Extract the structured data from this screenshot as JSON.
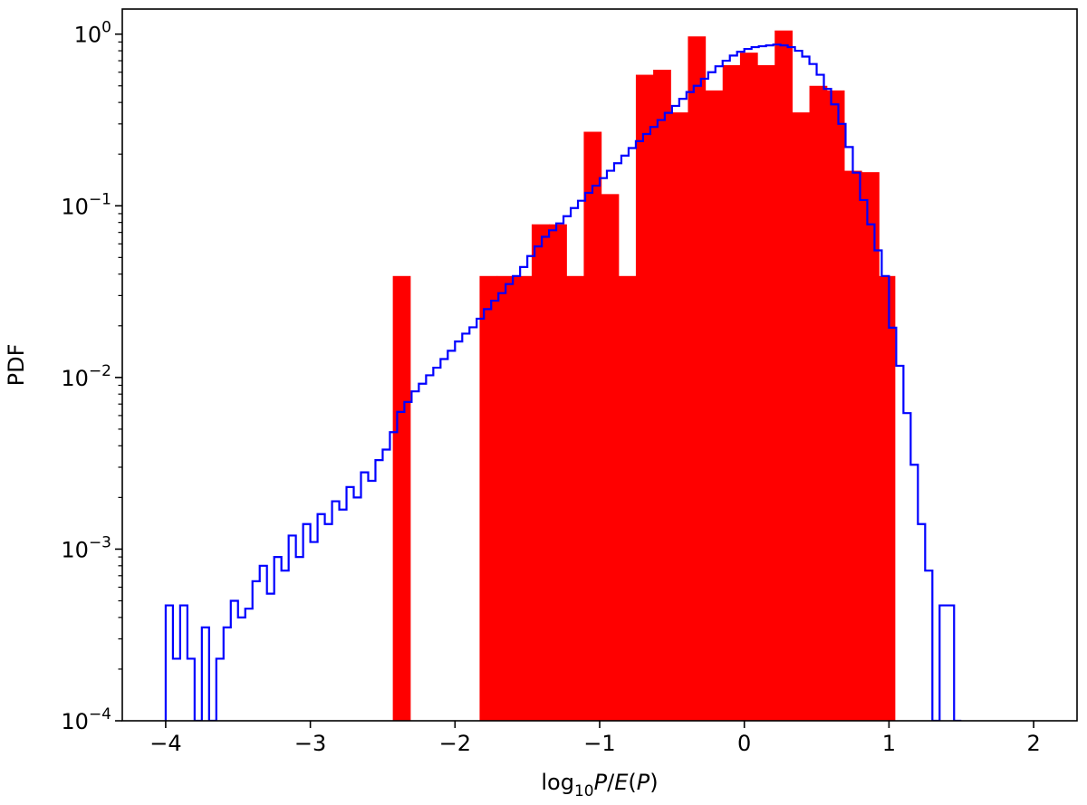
{
  "chart_data": {
    "type": "bar",
    "title": "",
    "xlabel_parts": [
      "log",
      "10",
      "P",
      "/",
      "E",
      "(",
      "P",
      ")"
    ],
    "ylabel": "PDF",
    "xlim": [
      -4.3,
      2.3
    ],
    "ylim": [
      0.0001,
      1.4
    ],
    "yscale": "log",
    "grid": false,
    "legend": "none",
    "x_ticks": [
      {
        "value": -4,
        "label": "−4"
      },
      {
        "value": -3,
        "label": "−3"
      },
      {
        "value": -2,
        "label": "−2"
      },
      {
        "value": -1,
        "label": "−1"
      },
      {
        "value": 0,
        "label": "0"
      },
      {
        "value": 1,
        "label": "1"
      },
      {
        "value": 2,
        "label": "2"
      }
    ],
    "y_ticks": [
      {
        "value": 1,
        "base": "10",
        "exp": "0"
      },
      {
        "value": 0.1,
        "base": "10",
        "exp": "−1"
      },
      {
        "value": 0.01,
        "base": "10",
        "exp": "−2"
      },
      {
        "value": 0.001,
        "base": "10",
        "exp": "−3"
      },
      {
        "value": 0.0001,
        "base": "10",
        "exp": "−4"
      }
    ],
    "series": [
      {
        "kind": "bars",
        "color": "#ff0000",
        "bins": [
          {
            "x0": -2.43,
            "x1": -2.31,
            "value": 0.039
          },
          {
            "x0": -1.83,
            "x1": -1.71,
            "value": 0.039
          },
          {
            "x0": -1.71,
            "x1": -1.59,
            "value": 0.039
          },
          {
            "x0": -1.59,
            "x1": -1.47,
            "value": 0.039
          },
          {
            "x0": -1.47,
            "x1": -1.35,
            "value": 0.078
          },
          {
            "x0": -1.35,
            "x1": -1.23,
            "value": 0.078
          },
          {
            "x0": -1.23,
            "x1": -1.11,
            "value": 0.039
          },
          {
            "x0": -1.11,
            "x1": -0.99,
            "value": 0.27
          },
          {
            "x0": -0.99,
            "x1": -0.87,
            "value": 0.117
          },
          {
            "x0": -0.87,
            "x1": -0.75,
            "value": 0.039
          },
          {
            "x0": -0.75,
            "x1": -0.63,
            "value": 0.58
          },
          {
            "x0": -0.63,
            "x1": -0.51,
            "value": 0.62
          },
          {
            "x0": -0.51,
            "x1": -0.39,
            "value": 0.35
          },
          {
            "x0": -0.39,
            "x1": -0.27,
            "value": 0.97
          },
          {
            "x0": -0.27,
            "x1": -0.15,
            "value": 0.47
          },
          {
            "x0": -0.15,
            "x1": -0.03,
            "value": 0.66
          },
          {
            "x0": -0.03,
            "x1": 0.09,
            "value": 0.78
          },
          {
            "x0": 0.09,
            "x1": 0.21,
            "value": 0.66
          },
          {
            "x0": 0.21,
            "x1": 0.33,
            "value": 1.05
          },
          {
            "x0": 0.33,
            "x1": 0.45,
            "value": 0.35
          },
          {
            "x0": 0.45,
            "x1": 0.57,
            "value": 0.5
          },
          {
            "x0": 0.57,
            "x1": 0.69,
            "value": 0.47
          },
          {
            "x0": 0.69,
            "x1": 0.81,
            "value": 0.16
          },
          {
            "x0": 0.81,
            "x1": 0.93,
            "value": 0.157
          },
          {
            "x0": 0.93,
            "x1": 1.04,
            "value": 0.039
          }
        ]
      },
      {
        "kind": "step",
        "color": "#0000ff",
        "points": [
          [
            -4.0,
            0.00047
          ],
          [
            -3.95,
            0.00023
          ],
          [
            -3.9,
            0.00047
          ],
          [
            -3.85,
            0.00023
          ],
          [
            -3.8,
            0.0001
          ],
          [
            -3.75,
            0.00035
          ],
          [
            -3.7,
            0.0001
          ],
          [
            -3.65,
            0.00023
          ],
          [
            -3.6,
            0.00035
          ],
          [
            -3.55,
            0.0005
          ],
          [
            -3.5,
            0.0004
          ],
          [
            -3.45,
            0.00045
          ],
          [
            -3.4,
            0.00065
          ],
          [
            -3.35,
            0.0008
          ],
          [
            -3.3,
            0.00055
          ],
          [
            -3.25,
            0.0009
          ],
          [
            -3.2,
            0.00075
          ],
          [
            -3.15,
            0.0012
          ],
          [
            -3.1,
            0.0009
          ],
          [
            -3.05,
            0.0014
          ],
          [
            -3.0,
            0.0011
          ],
          [
            -2.95,
            0.0016
          ],
          [
            -2.9,
            0.0014
          ],
          [
            -2.85,
            0.0019
          ],
          [
            -2.8,
            0.0017
          ],
          [
            -2.75,
            0.0023
          ],
          [
            -2.7,
            0.002
          ],
          [
            -2.65,
            0.0028
          ],
          [
            -2.6,
            0.0025
          ],
          [
            -2.55,
            0.0033
          ],
          [
            -2.5,
            0.0038
          ],
          [
            -2.45,
            0.0048
          ],
          [
            -2.4,
            0.0063
          ],
          [
            -2.35,
            0.0072
          ],
          [
            -2.3,
            0.0083
          ],
          [
            -2.25,
            0.0092
          ],
          [
            -2.2,
            0.0103
          ],
          [
            -2.15,
            0.0114
          ],
          [
            -2.1,
            0.0128
          ],
          [
            -2.05,
            0.0143
          ],
          [
            -2.0,
            0.0162
          ],
          [
            -1.95,
            0.018
          ],
          [
            -1.9,
            0.0196
          ],
          [
            -1.85,
            0.022
          ],
          [
            -1.8,
            0.025
          ],
          [
            -1.75,
            0.028
          ],
          [
            -1.7,
            0.031
          ],
          [
            -1.65,
            0.035
          ],
          [
            -1.6,
            0.039
          ],
          [
            -1.55,
            0.044
          ],
          [
            -1.5,
            0.051
          ],
          [
            -1.45,
            0.058
          ],
          [
            -1.4,
            0.066
          ],
          [
            -1.35,
            0.072
          ],
          [
            -1.3,
            0.079
          ],
          [
            -1.25,
            0.087
          ],
          [
            -1.2,
            0.097
          ],
          [
            -1.15,
            0.107
          ],
          [
            -1.1,
            0.119
          ],
          [
            -1.05,
            0.131
          ],
          [
            -1.0,
            0.145
          ],
          [
            -0.95,
            0.16
          ],
          [
            -0.9,
            0.177
          ],
          [
            -0.85,
            0.196
          ],
          [
            -0.8,
            0.217
          ],
          [
            -0.75,
            0.238
          ],
          [
            -0.7,
            0.262
          ],
          [
            -0.65,
            0.288
          ],
          [
            -0.6,
            0.316
          ],
          [
            -0.55,
            0.348
          ],
          [
            -0.5,
            0.382
          ],
          [
            -0.45,
            0.42
          ],
          [
            -0.4,
            0.46
          ],
          [
            -0.35,
            0.5
          ],
          [
            -0.3,
            0.55
          ],
          [
            -0.25,
            0.6
          ],
          [
            -0.2,
            0.65
          ],
          [
            -0.15,
            0.7
          ],
          [
            -0.1,
            0.75
          ],
          [
            -0.05,
            0.79
          ],
          [
            0.0,
            0.82
          ],
          [
            0.05,
            0.84
          ],
          [
            0.1,
            0.85
          ],
          [
            0.15,
            0.86
          ],
          [
            0.2,
            0.87
          ],
          [
            0.25,
            0.86
          ],
          [
            0.3,
            0.84
          ],
          [
            0.35,
            0.8
          ],
          [
            0.4,
            0.74
          ],
          [
            0.45,
            0.67
          ],
          [
            0.5,
            0.58
          ],
          [
            0.55,
            0.48
          ],
          [
            0.6,
            0.39
          ],
          [
            0.65,
            0.3
          ],
          [
            0.7,
            0.22
          ],
          [
            0.75,
            0.156
          ],
          [
            0.8,
            0.108
          ],
          [
            0.85,
            0.078
          ],
          [
            0.9,
            0.055
          ],
          [
            0.95,
            0.039
          ],
          [
            1.0,
            0.0195
          ],
          [
            1.05,
            0.0117
          ],
          [
            1.1,
            0.0062
          ],
          [
            1.15,
            0.0031
          ],
          [
            1.2,
            0.0014
          ],
          [
            1.25,
            0.00075
          ],
          [
            1.3,
            0.0001
          ],
          [
            1.35,
            0.00047
          ],
          [
            1.4,
            0.00047
          ],
          [
            1.45,
            0.0001
          ]
        ]
      }
    ]
  }
}
